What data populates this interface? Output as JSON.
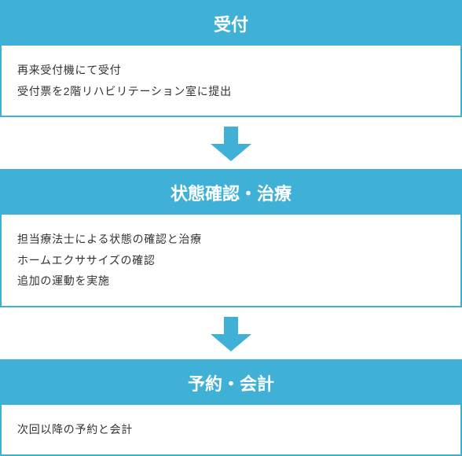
{
  "flow": {
    "accent_color": "#3fb1d6",
    "header_text_color": "#ffffff",
    "body_text_color": "#323232",
    "body_bg_color": "#ffffff",
    "border_color": "#3fb1d6",
    "header_fontsize": 22,
    "body_fontsize": 14,
    "arrow": {
      "stem_width": 18,
      "stem_height": 22,
      "head_width": 52,
      "head_height": 22,
      "color": "#3fb1d6"
    },
    "steps": [
      {
        "title": "受付",
        "lines": [
          "再来受付機にて受付",
          "受付票を2階リハビリテーション室に提出"
        ]
      },
      {
        "title": "状態確認・治療",
        "lines": [
          "担当療法士による状態の確認と治療",
          "ホームエクササイズの確認",
          "追加の運動を実施"
        ]
      },
      {
        "title": "予約・会計",
        "lines": [
          "次回以降の予約と会計"
        ]
      }
    ]
  }
}
